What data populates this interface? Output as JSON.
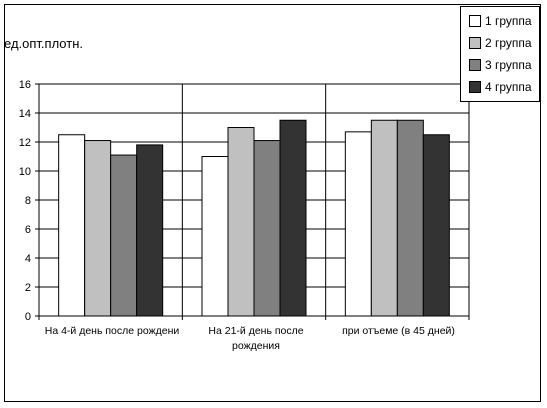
{
  "chart_data": {
    "type": "bar",
    "ylabel": "ед.опт.плотн.",
    "xlabel": "",
    "ylim": [
      0,
      16
    ],
    "yticks": [
      "0",
      "2",
      "4",
      "6",
      "8",
      "10",
      "12",
      "14",
      "16"
    ],
    "categories": [
      "На 4-й день после рождени",
      "На 21-й день после рождения",
      "при отъеме (в 45 дней)"
    ],
    "series": [
      {
        "name": "1 группа",
        "color": "#ffffff",
        "values": [
          12.5,
          11.0,
          12.7
        ]
      },
      {
        "name": "2 группа",
        "color": "#c0c0c0",
        "values": [
          12.1,
          13.0,
          13.5
        ]
      },
      {
        "name": "3 группа",
        "color": "#808080",
        "values": [
          11.1,
          12.1,
          13.5
        ]
      },
      {
        "name": "4 группа",
        "color": "#333333",
        "values": [
          11.8,
          13.5,
          12.5
        ]
      }
    ],
    "grid": true,
    "legend_position": "top-right"
  }
}
